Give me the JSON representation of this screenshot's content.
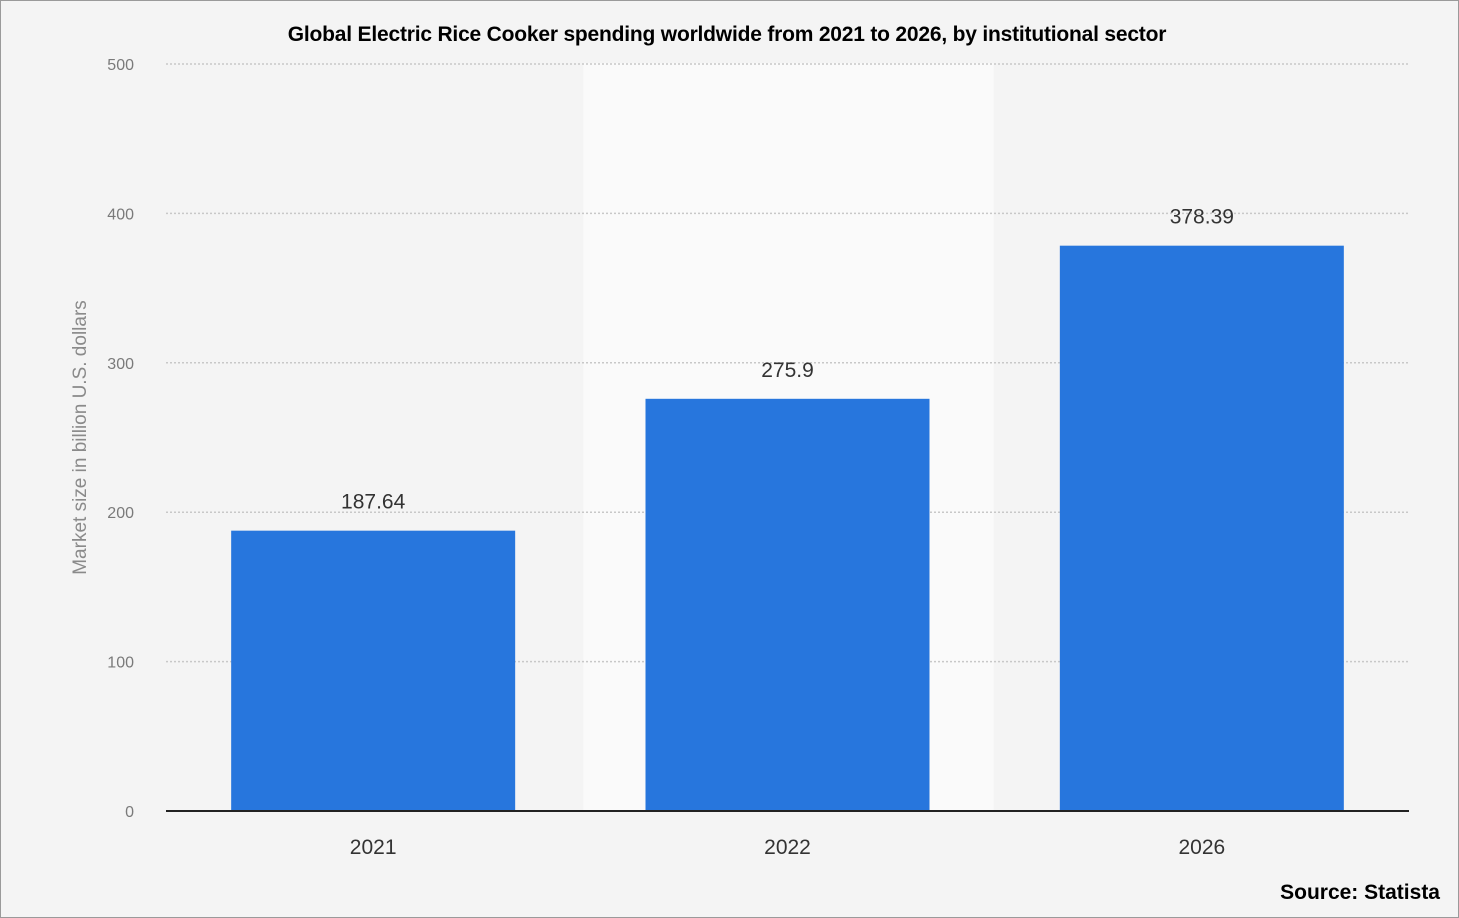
{
  "chart_data": {
    "type": "bar",
    "title": "Global Electric Rice Cooker spending worldwide from 2021 to 2026, by institutional sector",
    "source": "Source: Statista",
    "xlabel": "",
    "ylabel": "Market size in billion U.S. dollars",
    "ylim": [
      0,
      500
    ],
    "yticks": [
      "0",
      "100",
      "200",
      "300",
      "400",
      "500"
    ],
    "categories": [
      "2021",
      "2022",
      "2026"
    ],
    "values": [
      187.64,
      275.9,
      378.39
    ],
    "value_labels": [
      "187.64",
      "275.9",
      "378.39"
    ],
    "grid": true,
    "bar_color": "#2776dd",
    "background_color": "#f4f4f4",
    "highlight_band_color": "#fafafa"
  }
}
